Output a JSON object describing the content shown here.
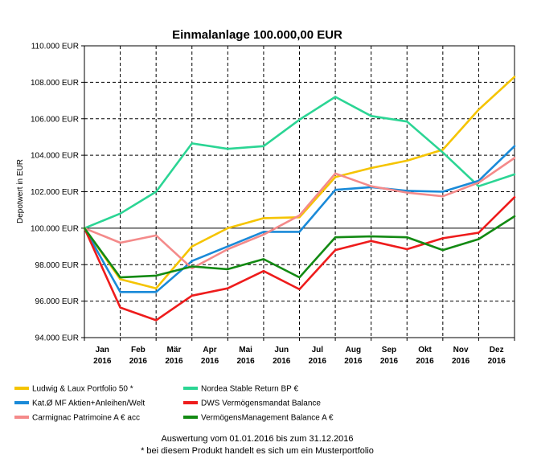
{
  "chart_data": {
    "type": "line",
    "title": "Einmalanlage 100.000,00 EUR",
    "ylabel": "Depotwert in EUR",
    "xlabel": "",
    "ylim": [
      94000,
      110000
    ],
    "yticks": [
      {
        "value": 94000,
        "label": "94.000 EUR"
      },
      {
        "value": 96000,
        "label": "96.000 EUR"
      },
      {
        "value": 98000,
        "label": "98.000 EUR"
      },
      {
        "value": 100000,
        "label": "100.000 EUR"
      },
      {
        "value": 102000,
        "label": "102.000 EUR"
      },
      {
        "value": 104000,
        "label": "104.000 EUR"
      },
      {
        "value": 106000,
        "label": "106.000 EUR"
      },
      {
        "value": 108000,
        "label": "108.000 EUR"
      },
      {
        "value": 110000,
        "label": "110.000 EUR"
      }
    ],
    "categories": [
      {
        "month": "Jan",
        "year": "2016"
      },
      {
        "month": "Feb",
        "year": "2016"
      },
      {
        "month": "Mär",
        "year": "2016"
      },
      {
        "month": "Apr",
        "year": "2016"
      },
      {
        "month": "Mai",
        "year": "2016"
      },
      {
        "month": "Jun",
        "year": "2016"
      },
      {
        "month": "Jul",
        "year": "2016"
      },
      {
        "month": "Aug",
        "year": "2016"
      },
      {
        "month": "Sep",
        "year": "2016"
      },
      {
        "month": "Okt",
        "year": "2016"
      },
      {
        "month": "Nov",
        "year": "2016"
      },
      {
        "month": "Dez",
        "year": "2016"
      }
    ],
    "x": [
      0,
      1,
      2,
      3,
      4,
      5,
      6,
      7,
      8,
      9,
      10,
      11,
      12
    ],
    "grid": true,
    "legend_position": "bottom",
    "series": [
      {
        "name": "Ludwig & Laux Portfolio 50  *",
        "color": "#F5C400",
        "values": [
          100000,
          97200,
          96700,
          99000,
          100000,
          100550,
          100600,
          102800,
          103300,
          103700,
          104300,
          106500,
          108300
        ]
      },
      {
        "name": "Nordea Stable Return BP €",
        "color": "#2BD594",
        "values": [
          100000,
          100800,
          102000,
          104650,
          104350,
          104500,
          105950,
          107200,
          106150,
          105850,
          104150,
          102300,
          102950
        ]
      },
      {
        "name": "Kat.Ø MF Aktien+Anleihen/Welt",
        "color": "#1A8AD8",
        "values": [
          100000,
          96500,
          96500,
          98200,
          99000,
          99800,
          99800,
          102100,
          102250,
          102050,
          102000,
          102600,
          104500
        ]
      },
      {
        "name": "DWS Vermögensmandat Balance",
        "color": "#EE1C1C",
        "values": [
          100000,
          95650,
          94950,
          96300,
          96700,
          97650,
          96650,
          98800,
          99300,
          98850,
          99450,
          99750,
          101700
        ]
      },
      {
        "name": "Carmignac Patrimoine A € acc",
        "color": "#F48A8A",
        "values": [
          100000,
          99200,
          99600,
          97800,
          98850,
          99650,
          100700,
          103000,
          102300,
          101950,
          101750,
          102500,
          103850
        ]
      },
      {
        "name": "VermögensManagement Balance A €",
        "color": "#138A13",
        "values": [
          100000,
          97300,
          97400,
          97900,
          97750,
          98300,
          97300,
          99500,
          99550,
          99500,
          98800,
          99400,
          100650
        ]
      }
    ]
  },
  "footer": {
    "line1": "Auswertung vom 01.01.2016 bis zum 31.12.2016",
    "line2": "* bei diesem Produkt handelt es sich um ein Musterportfolio"
  }
}
